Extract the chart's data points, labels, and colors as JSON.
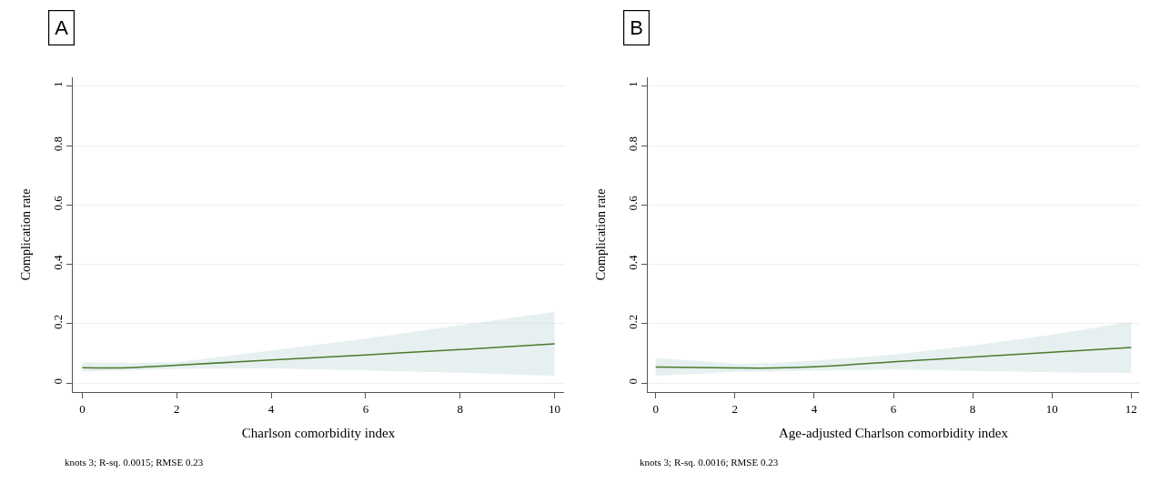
{
  "chart_data": [
    {
      "type": "line",
      "title": "A",
      "xlabel": "Charlson comorbidity index",
      "ylabel": "Complication rate",
      "annotations": [
        "knots 3; R-sq. 0.0015; RMSE 0.23"
      ],
      "x": [
        0,
        1,
        2,
        4,
        6,
        8,
        10
      ],
      "series": [
        {
          "color": "#4a7a2c",
          "values": [
            0.052,
            0.052,
            0.06,
            0.078,
            0.095,
            0.113,
            0.132
          ],
          "lower": [
            0.04,
            0.043,
            0.048,
            0.05,
            0.043,
            0.035,
            0.024
          ],
          "upper": [
            0.07,
            0.068,
            0.07,
            0.11,
            0.15,
            0.195,
            0.24
          ]
        }
      ],
      "xlim": [
        -0.2,
        10.2
      ],
      "xticks": [
        0,
        2,
        4,
        6,
        8,
        10
      ],
      "ylim": [
        -0.03,
        1.03
      ],
      "yticks": [
        0,
        0.2,
        0.4,
        0.6,
        0.8,
        1
      ],
      "grid": "y"
    },
    {
      "type": "line",
      "title": "B",
      "xlabel": "Age-adjusted Charlson comorbidity index",
      "ylabel": "Complication rate",
      "annotations": [
        "knots 3; R-sq. 0.0016; RMSE 0.23"
      ],
      "x": [
        0,
        2,
        3,
        4,
        6,
        8,
        10,
        12
      ],
      "series": [
        {
          "color": "#4a7a2c",
          "values": [
            0.054,
            0.051,
            0.051,
            0.055,
            0.072,
            0.088,
            0.104,
            0.12
          ],
          "lower": [
            0.024,
            0.038,
            0.04,
            0.042,
            0.046,
            0.041,
            0.037,
            0.034
          ],
          "upper": [
            0.084,
            0.066,
            0.068,
            0.076,
            0.096,
            0.127,
            0.163,
            0.207
          ]
        }
      ],
      "xlim": [
        -0.2,
        12.2
      ],
      "xticks": [
        0,
        2,
        4,
        6,
        8,
        10,
        12
      ],
      "ylim": [
        -0.03,
        1.03
      ],
      "yticks": [
        0,
        0.2,
        0.4,
        0.6,
        0.8,
        1
      ],
      "grid": "y"
    }
  ]
}
